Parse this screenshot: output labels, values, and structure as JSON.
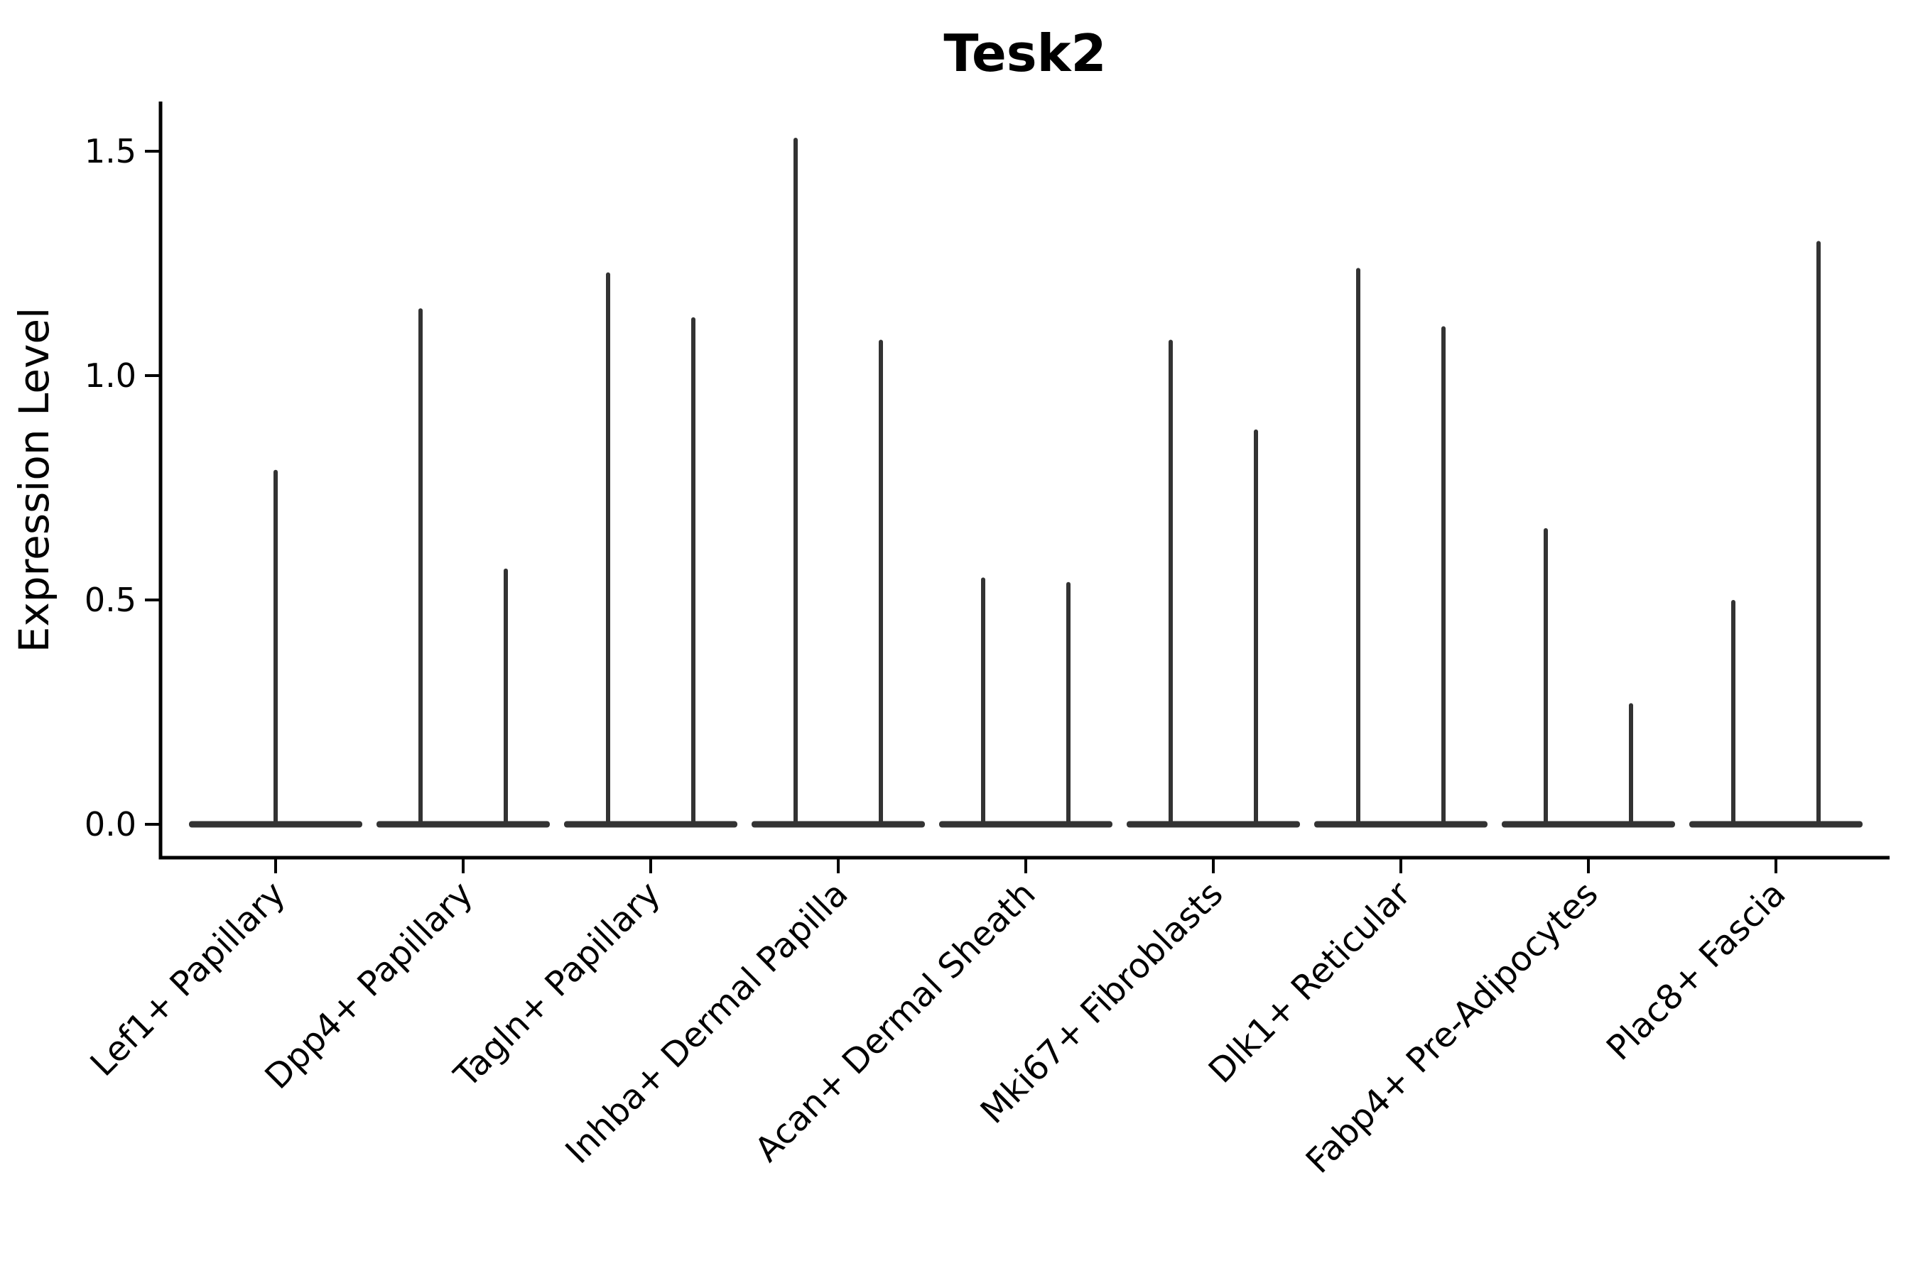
{
  "title": "Tesk2",
  "y_axis": {
    "label": "Expression Level",
    "tick_labels": [
      "0.0",
      "0.5",
      "1.0",
      "1.5"
    ]
  },
  "colors": {
    "violin": "#333333",
    "axis": "#000000",
    "text": "#000000",
    "background": "#ffffff"
  },
  "chart_data": {
    "type": "violin",
    "title": "Tesk2",
    "ylabel": "Expression Level",
    "xlabel": "",
    "yticks": [
      0.0,
      0.5,
      1.0,
      1.5
    ],
    "ytick_labels": [
      "0.0",
      "0.5",
      "1.0",
      "1.5"
    ],
    "ylim": [
      -0.074,
      1.61
    ],
    "grid": false,
    "legend": "none",
    "x_tick_rotation": 45,
    "categories": [
      "Lef1+ Papillary",
      "Dpp4+ Papillary",
      "Tagln+ Papillary",
      "Inhba+ Dermal Papilla",
      "Acan+ Dermal Sheath",
      "Mki67+ Fibroblasts",
      "Dlk1+ Reticular",
      "Fabp4+ Pre-Adipocytes",
      "Plac8+ Fascia"
    ],
    "description": "Violin plot of Tesk2 expression; each category shows a flat density body at 0 with thin spikes rising to the maximum expression of each sub-group (pos -1 = left spike, 0 = centered single spike, 1 = right spike).",
    "baseline_value": 0.0,
    "violins": [
      {
        "category": "Lef1+ Papillary",
        "spikes": [
          {
            "pos": 0,
            "max": 0.79
          }
        ]
      },
      {
        "category": "Dpp4+ Papillary",
        "spikes": [
          {
            "pos": -1,
            "max": 1.15
          },
          {
            "pos": 1,
            "max": 0.57
          }
        ]
      },
      {
        "category": "Tagln+ Papillary",
        "spikes": [
          {
            "pos": -1,
            "max": 1.23
          },
          {
            "pos": 1,
            "max": 1.13
          }
        ]
      },
      {
        "category": "Inhba+ Dermal Papilla",
        "spikes": [
          {
            "pos": -1,
            "max": 1.53
          },
          {
            "pos": 1,
            "max": 1.08
          }
        ]
      },
      {
        "category": "Acan+ Dermal Sheath",
        "spikes": [
          {
            "pos": -1,
            "max": 0.55
          },
          {
            "pos": 1,
            "max": 0.54
          }
        ]
      },
      {
        "category": "Mki67+ Fibroblasts",
        "spikes": [
          {
            "pos": -1,
            "max": 1.08
          },
          {
            "pos": 1,
            "max": 0.88
          }
        ]
      },
      {
        "category": "Dlk1+ Reticular",
        "spikes": [
          {
            "pos": -1,
            "max": 1.24
          },
          {
            "pos": 1,
            "max": 1.11
          }
        ]
      },
      {
        "category": "Fabp4+ Pre-Adipocytes",
        "spikes": [
          {
            "pos": -1,
            "max": 0.66
          },
          {
            "pos": 1,
            "max": 0.27
          }
        ]
      },
      {
        "category": "Plac8+ Fascia",
        "spikes": [
          {
            "pos": -1,
            "max": 0.5
          },
          {
            "pos": 1,
            "max": 1.3
          }
        ]
      }
    ]
  }
}
